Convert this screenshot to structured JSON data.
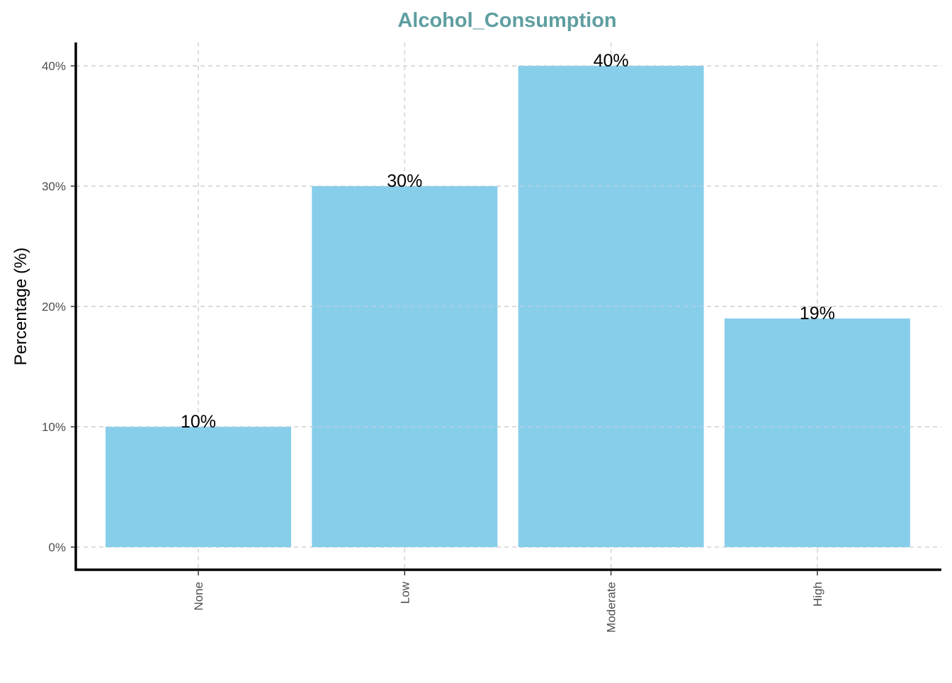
{
  "colors": {
    "bar": "#87CEEB",
    "title": "#5F9EA0",
    "grid": "#d3d3d3",
    "axis": "#000000"
  },
  "chart_data": {
    "type": "bar",
    "title": "Alcohol_Consumption",
    "xlabel": "",
    "ylabel": "Percentage (%)",
    "categories": [
      "None",
      "Low",
      "Moderate",
      "High"
    ],
    "values": [
      10,
      30,
      40,
      19
    ],
    "data_labels": [
      "10%",
      "30%",
      "40%",
      "19%"
    ],
    "ylim": [
      0,
      40
    ],
    "yticks": [
      0,
      10,
      20,
      30,
      40
    ],
    "ytick_labels": [
      "0%",
      "10%",
      "20%",
      "30%",
      "40%"
    ],
    "grid": true,
    "x_tick_rotation": "vertical",
    "legend": "none"
  }
}
